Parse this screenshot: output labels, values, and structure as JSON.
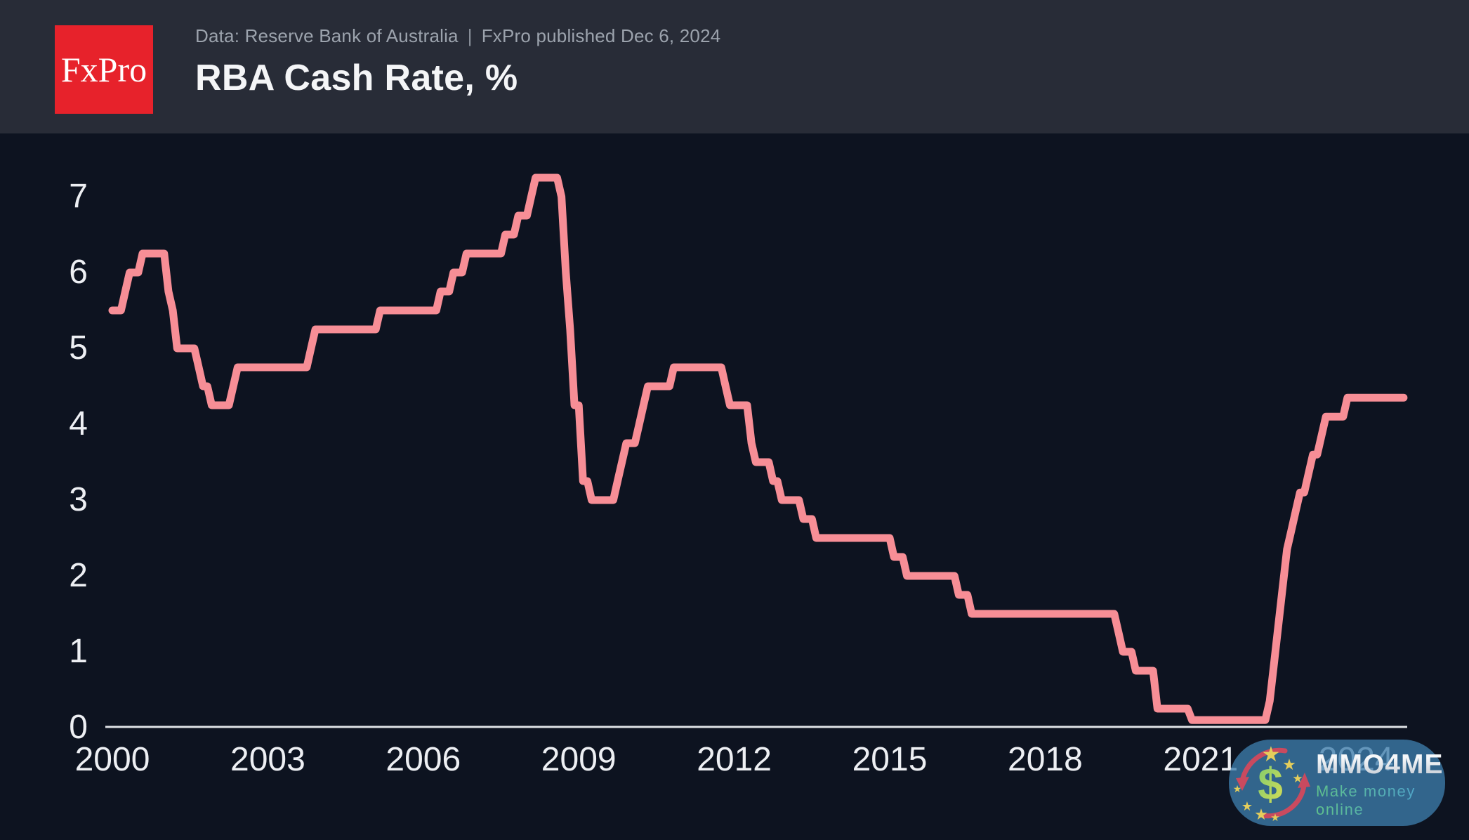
{
  "header": {
    "logo_text": "FxPro",
    "source_text": "Data: Reserve Bank of Australia",
    "separator": "|",
    "published_text": "FxPro published Dec 6, 2024",
    "title": "RBA Cash Rate, %"
  },
  "chart_data": {
    "type": "line",
    "style": "step-monthly",
    "title": "RBA Cash Rate, %",
    "unit": "%",
    "xlabel": "",
    "ylabel": "",
    "grid": false,
    "legend": "none",
    "xlim": [
      2000,
      2025
    ],
    "ylim": [
      0,
      7.6
    ],
    "x_ticks": [
      2000,
      2003,
      2006,
      2009,
      2012,
      2015,
      2018,
      2021,
      2024
    ],
    "y_ticks": [
      0,
      1,
      2,
      3,
      4,
      5,
      6,
      7
    ],
    "series": [
      {
        "name": "RBA Cash Rate (%)",
        "color": "#F78E96",
        "start": "2000-01",
        "end": "2024-12",
        "initial_value": 5.5,
        "steps": [
          [
            "2000-01",
            5.5
          ],
          [
            "2000-04",
            5.75
          ],
          [
            "2000-05",
            6.0
          ],
          [
            "2000-08",
            6.25
          ],
          [
            "2001-02",
            5.75
          ],
          [
            "2001-03",
            5.5
          ],
          [
            "2001-04",
            5.0
          ],
          [
            "2001-09",
            4.75
          ],
          [
            "2001-10",
            4.5
          ],
          [
            "2001-12",
            4.25
          ],
          [
            "2002-05",
            4.5
          ],
          [
            "2002-06",
            4.75
          ],
          [
            "2003-11",
            5.0
          ],
          [
            "2003-12",
            5.25
          ],
          [
            "2005-03",
            5.5
          ],
          [
            "2006-05",
            5.75
          ],
          [
            "2006-08",
            6.0
          ],
          [
            "2006-11",
            6.25
          ],
          [
            "2007-08",
            6.5
          ],
          [
            "2007-11",
            6.75
          ],
          [
            "2008-02",
            7.0
          ],
          [
            "2008-03",
            7.25
          ],
          [
            "2008-09",
            7.0
          ],
          [
            "2008-10",
            6.0
          ],
          [
            "2008-11",
            5.25
          ],
          [
            "2008-12",
            4.25
          ],
          [
            "2009-02",
            3.25
          ],
          [
            "2009-04",
            3.0
          ],
          [
            "2009-10",
            3.25
          ],
          [
            "2009-11",
            3.5
          ],
          [
            "2009-12",
            3.75
          ],
          [
            "2010-03",
            4.0
          ],
          [
            "2010-04",
            4.25
          ],
          [
            "2010-05",
            4.5
          ],
          [
            "2010-11",
            4.75
          ],
          [
            "2011-11",
            4.5
          ],
          [
            "2011-12",
            4.25
          ],
          [
            "2012-05",
            3.75
          ],
          [
            "2012-06",
            3.5
          ],
          [
            "2012-10",
            3.25
          ],
          [
            "2012-12",
            3.0
          ],
          [
            "2013-05",
            2.75
          ],
          [
            "2013-08",
            2.5
          ],
          [
            "2015-02",
            2.25
          ],
          [
            "2015-05",
            2.0
          ],
          [
            "2016-05",
            1.75
          ],
          [
            "2016-08",
            1.5
          ],
          [
            "2019-06",
            1.25
          ],
          [
            "2019-07",
            1.0
          ],
          [
            "2019-10",
            0.75
          ],
          [
            "2020-03",
            0.25
          ],
          [
            "2020-11",
            0.1
          ],
          [
            "2022-05",
            0.35
          ],
          [
            "2022-06",
            0.85
          ],
          [
            "2022-07",
            1.35
          ],
          [
            "2022-08",
            1.85
          ],
          [
            "2022-09",
            2.35
          ],
          [
            "2022-10",
            2.6
          ],
          [
            "2022-11",
            2.85
          ],
          [
            "2022-12",
            3.1
          ],
          [
            "2023-02",
            3.35
          ],
          [
            "2023-03",
            3.6
          ],
          [
            "2023-05",
            3.85
          ],
          [
            "2023-06",
            4.1
          ],
          [
            "2023-11",
            4.35
          ]
        ]
      }
    ]
  },
  "watermark": {
    "brand": "MMO4ME",
    "tagline": "Make money online",
    "dollar_symbol": "$",
    "star_symbol": "★"
  },
  "colors": {
    "background": "#0D1320",
    "header_background": "#282C37",
    "logo_red": "#E7222B",
    "line": "#F78E96",
    "axis": "#DFE2E6",
    "tick_label": "#EDEFF3",
    "watermark_pill": "rgba(62,124,170,0.78)"
  }
}
